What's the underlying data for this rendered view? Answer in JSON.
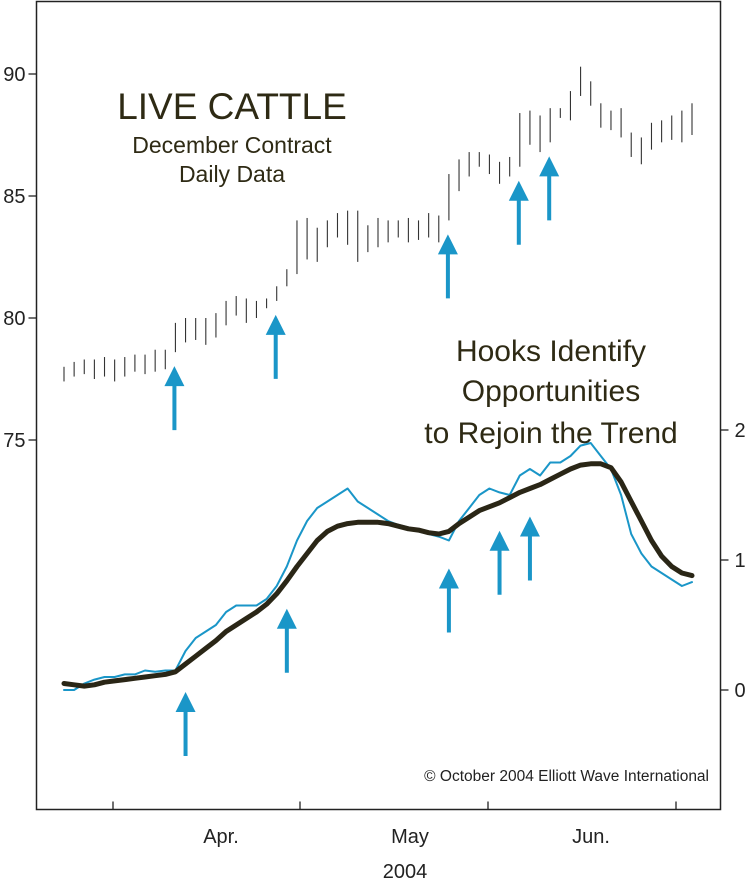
{
  "chart_data": {
    "type": "bar",
    "title": "LIVE CATTLE",
    "subtitle_line1": "December Contract",
    "subtitle_line2": "Daily Data",
    "annotation": [
      "Hooks Identify",
      "Opportunities",
      "to Rejoin the Trend"
    ],
    "copyright": "© October 2004 Elliott Wave International",
    "x_tick_labels": [
      "Apr.",
      "May",
      "Jun."
    ],
    "x_year_label": "2004",
    "left_axis": {
      "ylim": [
        72.5,
        92.5
      ],
      "ticks": [
        75,
        80,
        85,
        90
      ]
    },
    "right_axis": {
      "ylim": [
        -1.0,
        3.3
      ],
      "ticks": [
        0,
        1,
        2
      ]
    },
    "price_bars": [
      [
        77.4,
        78.0
      ],
      [
        77.6,
        78.2
      ],
      [
        77.7,
        78.3
      ],
      [
        77.5,
        78.3
      ],
      [
        77.6,
        78.4
      ],
      [
        77.4,
        78.3
      ],
      [
        77.6,
        78.4
      ],
      [
        77.8,
        78.5
      ],
      [
        77.7,
        78.5
      ],
      [
        77.8,
        78.7
      ],
      [
        77.9,
        78.7
      ],
      [
        78.6,
        79.8
      ],
      [
        79.0,
        80.0
      ],
      [
        79.1,
        80.0
      ],
      [
        78.9,
        80.0
      ],
      [
        79.2,
        80.2
      ],
      [
        79.7,
        80.7
      ],
      [
        80.1,
        80.9
      ],
      [
        79.8,
        80.8
      ],
      [
        80.0,
        80.7
      ],
      [
        80.4,
        80.8
      ],
      [
        80.7,
        81.3
      ],
      [
        81.3,
        82.0
      ],
      [
        81.8,
        84.0
      ],
      [
        82.4,
        84.1
      ],
      [
        82.3,
        83.7
      ],
      [
        82.9,
        84.0
      ],
      [
        83.3,
        84.3
      ],
      [
        83.0,
        84.4
      ],
      [
        82.3,
        84.4
      ],
      [
        82.7,
        83.8
      ],
      [
        82.9,
        84.1
      ],
      [
        83.1,
        84.0
      ],
      [
        83.3,
        84.0
      ],
      [
        83.1,
        84.1
      ],
      [
        83.2,
        84.0
      ],
      [
        83.3,
        84.3
      ],
      [
        83.1,
        84.2
      ],
      [
        84.0,
        85.9
      ],
      [
        85.2,
        86.5
      ],
      [
        85.8,
        86.8
      ],
      [
        86.2,
        86.8
      ],
      [
        85.9,
        86.7
      ],
      [
        85.5,
        86.4
      ],
      [
        85.8,
        86.6
      ],
      [
        86.2,
        88.4
      ],
      [
        87.1,
        88.5
      ],
      [
        86.8,
        88.3
      ],
      [
        87.2,
        88.6
      ],
      [
        88.2,
        88.6
      ],
      [
        88.1,
        89.3
      ],
      [
        89.1,
        90.3
      ],
      [
        88.7,
        89.7
      ],
      [
        87.8,
        88.8
      ],
      [
        87.7,
        88.5
      ],
      [
        87.4,
        88.6
      ],
      [
        86.6,
        87.6
      ],
      [
        86.3,
        87.4
      ],
      [
        86.9,
        88.0
      ],
      [
        87.2,
        88.1
      ],
      [
        87.3,
        88.3
      ],
      [
        87.2,
        88.5
      ],
      [
        87.5,
        88.8
      ]
    ],
    "series": [
      {
        "color": "#1a96c8",
        "values": [
          0.0,
          0.0,
          0.05,
          0.08,
          0.1,
          0.1,
          0.12,
          0.12,
          0.15,
          0.14,
          0.15,
          0.15,
          0.3,
          0.4,
          0.45,
          0.5,
          0.6,
          0.65,
          0.65,
          0.65,
          0.7,
          0.8,
          0.95,
          1.15,
          1.3,
          1.4,
          1.45,
          1.5,
          1.55,
          1.45,
          1.4,
          1.35,
          1.3,
          1.27,
          1.25,
          1.22,
          1.2,
          1.18,
          1.15,
          1.3,
          1.4,
          1.5,
          1.55,
          1.52,
          1.5,
          1.65,
          1.7,
          1.65,
          1.75,
          1.75,
          1.8,
          1.88,
          1.9,
          1.8,
          1.7,
          1.5,
          1.2,
          1.05,
          0.95,
          0.9,
          0.85,
          0.8,
          0.83
        ]
      },
      {
        "color": "#2a2616",
        "values": [
          0.05,
          0.04,
          0.03,
          0.04,
          0.06,
          0.07,
          0.08,
          0.09,
          0.1,
          0.11,
          0.12,
          0.14,
          0.2,
          0.26,
          0.32,
          0.38,
          0.45,
          0.5,
          0.55,
          0.6,
          0.66,
          0.74,
          0.84,
          0.95,
          1.05,
          1.15,
          1.22,
          1.26,
          1.28,
          1.29,
          1.29,
          1.29,
          1.28,
          1.26,
          1.24,
          1.23,
          1.21,
          1.2,
          1.22,
          1.28,
          1.33,
          1.38,
          1.41,
          1.44,
          1.48,
          1.52,
          1.55,
          1.58,
          1.62,
          1.66,
          1.7,
          1.73,
          1.74,
          1.74,
          1.71,
          1.6,
          1.45,
          1.3,
          1.15,
          1.03,
          0.95,
          0.9,
          0.88
        ]
      }
    ],
    "arrow_color": "#1a96c8",
    "price_hook_arrows_at_bar": [
      11,
      21,
      38,
      45,
      48
    ],
    "indicator_hook_arrows_at_bar": [
      12,
      22,
      38,
      43,
      46
    ]
  }
}
